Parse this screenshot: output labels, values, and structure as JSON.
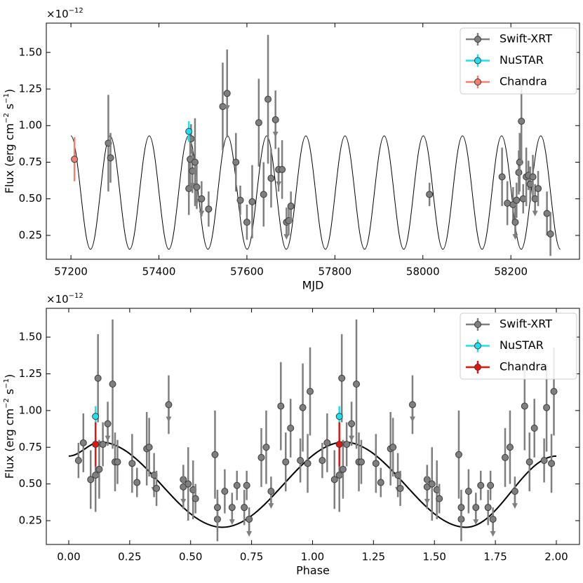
{
  "chart_data": [
    {
      "type": "errorbar",
      "xlabel": "MJD",
      "ylabel": [
        "Flux (erg cm",
        "−2",
        " s",
        "−1",
        ")"
      ],
      "y_multiplier": {
        "base": "×10",
        "exponent": "−12"
      },
      "xlim": [
        57144,
        58356
      ],
      "ylim": [
        0.087,
        1.7
      ],
      "xticks": [
        57200,
        57400,
        57600,
        57800,
        58000,
        58200
      ],
      "yticks": [
        0.25,
        {
          "value": 0.5,
          "label": "0.50"
        },
        0.75,
        {
          "value": 1.0,
          "label": "1.00"
        },
        1.25,
        {
          "value": 1.5,
          "label": "1.50"
        }
      ],
      "legend": "upper right",
      "series": [
        {
          "name": "Swift-XRT",
          "color": "#7f7f7f",
          "x": [
            57285,
            57290,
            57468,
            57471,
            57473,
            57476,
            57482,
            57486,
            57497,
            57513,
            57545,
            57555,
            57575,
            57585,
            57600,
            57612,
            57627,
            57638,
            57648,
            57655,
            57665,
            57672,
            57680,
            57690,
            57695,
            57700,
            58015,
            58180,
            58192,
            58205,
            58210,
            58213,
            58218,
            58220,
            58224,
            58228,
            58235,
            58240,
            58244,
            58250,
            58255,
            58262,
            58282,
            58290
          ],
          "values": [
            0.88,
            0.78,
            0.57,
            0.77,
            0.91,
            0.69,
            0.75,
            0.58,
            0.5,
            0.43,
            1.13,
            1.22,
            0.75,
            0.49,
            0.34,
            0.48,
            1.02,
            0.53,
            1.18,
            0.64,
            1.04,
            0.7,
            0.7,
            0.34,
            0.35,
            0.45,
            0.53,
            0.65,
            0.47,
            0.46,
            0.34,
            0.49,
            0.68,
            0.75,
            1.03,
            0.5,
            0.65,
            0.66,
            0.6,
            0.65,
            0.5,
            0.57,
            0.4,
            0.26
          ],
          "errors": [
            0.33,
            0.17,
            0.18,
            0.2,
            0.1,
            0.15,
            0.3,
            0.15,
            0.12,
            0.12,
            0.3,
            0.3,
            0.2,
            0.1,
            0.12,
            0.25,
            0.3,
            0.22,
            0.44,
            0.2,
            0.2,
            0.15,
            0.2,
            0.1,
            0.1,
            0.1,
            0.08,
            0.2,
            0.15,
            0.12,
            0.1,
            0.12,
            0.15,
            0.2,
            0.3,
            0.1,
            0.2,
            0.1,
            0.12,
            0.15,
            0.1,
            0.12,
            0.15,
            0.15
          ],
          "upper_limit": [
            false,
            false,
            false,
            false,
            false,
            true,
            false,
            true,
            true,
            false,
            false,
            true,
            false,
            false,
            false,
            false,
            false,
            false,
            false,
            false,
            true,
            true,
            false,
            true,
            false,
            true,
            false,
            false,
            false,
            false,
            true,
            false,
            false,
            false,
            false,
            false,
            false,
            false,
            false,
            false,
            true,
            false,
            false,
            false
          ]
        },
        {
          "name": "NuSTAR",
          "color": "#1ee0f0",
          "x": [
            57468
          ],
          "values": [
            0.96
          ],
          "errors": [
            0.07
          ],
          "upper_limit": [
            false
          ]
        },
        {
          "name": "Chandra",
          "color": "#f08070",
          "x": [
            57208
          ],
          "values": [
            0.77
          ],
          "errors": [
            0.15
          ],
          "upper_limit": [
            false
          ]
        }
      ],
      "model": {
        "color": "#000000",
        "x": [
          57200,
          57244.5,
          57289,
          57333.5,
          57378,
          57422.5,
          57467,
          57511.5,
          57556,
          57600.5,
          57645,
          57689.5,
          57734,
          57778.5,
          57823,
          57867.5,
          57912,
          57956.5,
          58001,
          58045.5,
          58090,
          58134.5,
          58179,
          58223.5,
          58268,
          58312.5
        ],
        "values": [
          0.93,
          0.155,
          0.93,
          0.155,
          0.93,
          0.155,
          0.93,
          0.155,
          0.93,
          0.155,
          0.93,
          0.155,
          0.93,
          0.155,
          0.93,
          0.155,
          0.93,
          0.155,
          0.93,
          0.155,
          0.93,
          0.155,
          0.93,
          0.155,
          0.93,
          0.155
        ]
      }
    },
    {
      "type": "errorbar",
      "xlabel": "Phase",
      "ylabel": [
        "Flux (erg cm",
        "−2",
        " s",
        "−1",
        ")"
      ],
      "y_multiplier": {
        "base": "×10",
        "exponent": "−12"
      },
      "xlim": [
        -0.092,
        2.095
      ],
      "ylim": [
        0.088,
        1.696
      ],
      "xticks": [
        {
          "value": 0,
          "label": "0.00"
        },
        0.25,
        {
          "value": 0.5,
          "label": "0.50"
        },
        0.75,
        {
          "value": 1,
          "label": "1.00"
        },
        1.25,
        {
          "value": 1.5,
          "label": "1.50"
        },
        1.75,
        {
          "value": 2,
          "label": "2.00"
        }
      ],
      "yticks": [
        0.25,
        {
          "value": 0.5,
          "label": "0.50"
        },
        0.75,
        {
          "value": 1.0,
          "label": "1.00"
        },
        1.25,
        {
          "value": 1.5,
          "label": "1.50"
        }
      ],
      "legend": "upper right",
      "series": [
        {
          "name": "Swift-XRT",
          "color": "#7f7f7f",
          "x": [
            0.04,
            0.06,
            0.09,
            0.11,
            0.12,
            0.125,
            0.14,
            0.16,
            0.18,
            0.19,
            0.2,
            0.26,
            0.28,
            0.32,
            0.33,
            0.35,
            0.36,
            0.41,
            0.47,
            0.47,
            0.49,
            0.51,
            0.52,
            0.6,
            0.61,
            0.61,
            0.64,
            0.67,
            0.69,
            0.72,
            0.73,
            0.74,
            0.79,
            0.81,
            0.83,
            0.87,
            0.89,
            0.91,
            0.95,
            0.96,
            0.98,
            0.99,
            1.04,
            1.06,
            1.09,
            1.11,
            1.12,
            1.125,
            1.14,
            1.16,
            1.18,
            1.19,
            1.2,
            1.26,
            1.28,
            1.32,
            1.33,
            1.35,
            1.36,
            1.41,
            1.47,
            1.47,
            1.49,
            1.51,
            1.52,
            1.6,
            1.61,
            1.61,
            1.64,
            1.67,
            1.69,
            1.72,
            1.73,
            1.74,
            1.79,
            1.81,
            1.83,
            1.87,
            1.89,
            1.91,
            1.95,
            1.96,
            1.98,
            1.99
          ],
          "values": [
            0.66,
            0.78,
            0.53,
            0.56,
            1.22,
            0.6,
            0.77,
            0.91,
            1.18,
            0.65,
            0.65,
            0.64,
            0.51,
            0.74,
            0.75,
            0.56,
            0.47,
            1.04,
            0.53,
            0.48,
            0.5,
            0.46,
            0.4,
            0.7,
            0.26,
            0.34,
            0.45,
            0.34,
            0.49,
            0.34,
            0.49,
            0.26,
            0.68,
            0.75,
            0.45,
            1.03,
            0.65,
            0.88,
            0.66,
            1.02,
            0.64,
            1.13,
            0.66,
            0.78,
            0.53,
            0.56,
            1.22,
            0.6,
            0.77,
            0.91,
            1.18,
            0.65,
            0.65,
            0.64,
            0.51,
            0.74,
            0.75,
            0.56,
            0.47,
            1.04,
            0.53,
            0.48,
            0.5,
            0.46,
            0.4,
            0.7,
            0.26,
            0.34,
            0.45,
            0.34,
            0.49,
            0.34,
            0.49,
            0.26,
            0.68,
            0.75,
            0.45,
            1.03,
            0.65,
            0.88,
            0.66,
            1.02,
            0.64,
            1.13
          ],
          "errors": [
            0.12,
            0.2,
            0.2,
            0.25,
            0.3,
            0.2,
            0.15,
            0.15,
            0.44,
            0.2,
            0.15,
            0.2,
            0.1,
            0.25,
            0.2,
            0.15,
            0.12,
            0.2,
            0.1,
            0.15,
            0.25,
            0.2,
            0.1,
            0.3,
            0.15,
            0.12,
            0.15,
            0.1,
            0.1,
            0.12,
            0.1,
            0.08,
            0.2,
            0.25,
            0.1,
            0.3,
            0.2,
            0.2,
            0.15,
            0.3,
            0.2,
            0.3,
            0.12,
            0.2,
            0.2,
            0.25,
            0.3,
            0.2,
            0.15,
            0.15,
            0.44,
            0.2,
            0.15,
            0.2,
            0.1,
            0.25,
            0.2,
            0.15,
            0.12,
            0.2,
            0.1,
            0.15,
            0.25,
            0.2,
            0.1,
            0.3,
            0.15,
            0.12,
            0.15,
            0.1,
            0.1,
            0.12,
            0.1,
            0.08,
            0.2,
            0.25,
            0.1,
            0.3,
            0.2,
            0.2,
            0.15,
            0.3,
            0.2,
            0.3
          ],
          "upper_limit": [
            false,
            false,
            false,
            false,
            false,
            false,
            false,
            true,
            false,
            false,
            false,
            false,
            false,
            false,
            false,
            true,
            false,
            true,
            false,
            true,
            false,
            false,
            false,
            false,
            false,
            false,
            false,
            true,
            false,
            false,
            false,
            true,
            false,
            false,
            true,
            false,
            false,
            false,
            false,
            false,
            false,
            false,
            false,
            false,
            false,
            false,
            false,
            false,
            false,
            true,
            false,
            false,
            false,
            false,
            false,
            false,
            false,
            true,
            false,
            true,
            false,
            true,
            false,
            false,
            false,
            false,
            false,
            false,
            false,
            true,
            false,
            false,
            false,
            true,
            false,
            false,
            true,
            false,
            false,
            false,
            false,
            false,
            false,
            false
          ]
        },
        {
          "name": "NuSTAR",
          "color": "#1ee0f0",
          "x": [
            0.11,
            1.11
          ],
          "values": [
            0.96,
            0.96
          ],
          "errors": [
            0.07,
            0.07
          ],
          "upper_limit": [
            false,
            false
          ]
        },
        {
          "name": "Chandra",
          "color": "#e8140e",
          "x": [
            0.11,
            1.11
          ],
          "values": [
            0.77,
            0.77
          ],
          "errors": [
            0.15,
            0.15
          ],
          "upper_limit": [
            false,
            false
          ]
        }
      ],
      "model": {
        "color": "#000000",
        "x": [
          0,
          0.13,
          0.63,
          1.13,
          1.63,
          2.0
        ],
        "values": [
          0.69,
          0.785,
          0.205,
          0.785,
          0.205,
          0.69
        ]
      }
    }
  ]
}
